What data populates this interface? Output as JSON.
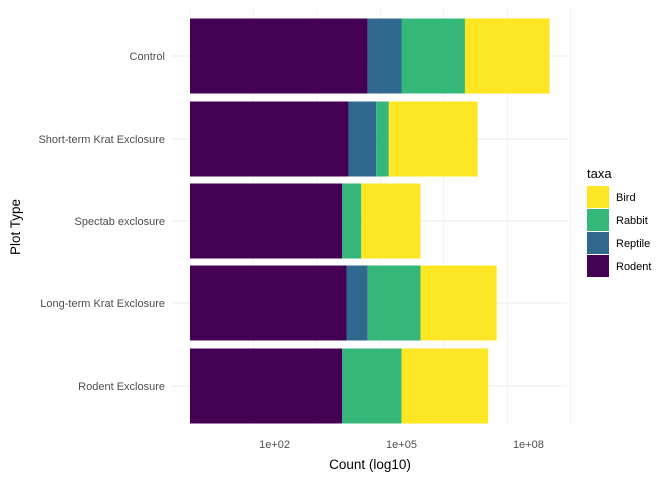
{
  "chart_data": {
    "type": "bar",
    "orientation": "horizontal",
    "stacked": true,
    "xscale": "log10",
    "xlabel": "Count (log10)",
    "ylabel": "Plot Type",
    "xlim_log10": [
      0,
      9
    ],
    "xticks": [
      {
        "value_log10": 2,
        "label": "1e+02"
      },
      {
        "value_log10": 5,
        "label": "1e+05"
      },
      {
        "value_log10": 8,
        "label": "1e+08"
      }
    ],
    "categories": [
      "Control",
      "Short-term Krat Exclosure",
      "Spectab exclosure",
      "Long-term Krat Exclosure",
      "Rodent Exclosure"
    ],
    "stack_order": [
      "Rodent",
      "Reptile",
      "Rabbit",
      "Bird"
    ],
    "series": [
      {
        "name": "Rodent",
        "color": "#440154",
        "log_segment": [
          4.2,
          3.75,
          3.6,
          3.7,
          3.6
        ]
      },
      {
        "name": "Reptile",
        "color": "#31688e",
        "log_segment": [
          0.8,
          0.65,
          0.0,
          0.5,
          0.0
        ]
      },
      {
        "name": "Rabbit",
        "color": "#35b779",
        "log_segment": [
          1.5,
          0.3,
          0.45,
          1.25,
          1.4
        ]
      },
      {
        "name": "Bird",
        "color": "#fde725",
        "log_segment": [
          2.0,
          2.1,
          1.4,
          1.8,
          2.05
        ]
      }
    ],
    "legend": {
      "title": "taxa",
      "position": "right",
      "entries": [
        "Bird",
        "Rabbit",
        "Reptile",
        "Rodent"
      ]
    },
    "grid": true
  }
}
